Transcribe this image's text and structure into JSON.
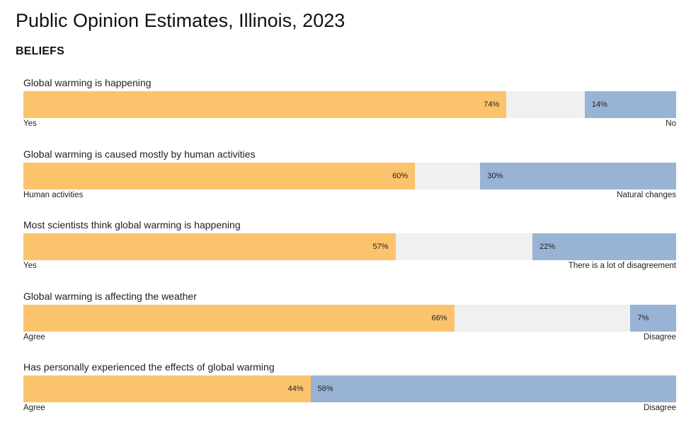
{
  "title": "Public Opinion Estimates, Illinois, 2023",
  "section": "BELIEFS",
  "colors": {
    "positive": "#fcc36d",
    "negative": "#98b3d4",
    "neutral": "#f0f0f0"
  },
  "chart_data": {
    "type": "bar",
    "orientation": "horizontal-diverging",
    "title": "Public Opinion Estimates, Illinois, 2023",
    "categories": [
      "Global warming is happening",
      "Global warming is caused mostly by human activities",
      "Most scientists think global warming is happening",
      "Global warming is affecting the weather",
      "Has personally experienced the effects of global warming"
    ],
    "rows": [
      {
        "question": "Global warming is happening",
        "left_value": 74,
        "right_value": 14,
        "left_text": "74%",
        "right_text": "14%",
        "left_label": "Yes",
        "right_label": "No"
      },
      {
        "question": "Global warming is caused mostly by human activities",
        "left_value": 60,
        "right_value": 30,
        "left_text": "60%",
        "right_text": "30%",
        "left_label": "Human activities",
        "right_label": "Natural changes"
      },
      {
        "question": "Most scientists think global warming is happening",
        "left_value": 57,
        "right_value": 22,
        "left_text": "57%",
        "right_text": "22%",
        "left_label": "Yes",
        "right_label": "There is a lot of disagreement"
      },
      {
        "question": "Global warming is affecting the weather",
        "left_value": 66,
        "right_value": 7,
        "left_text": "66%",
        "right_text": "7%",
        "left_label": "Agree",
        "right_label": "Disagree"
      },
      {
        "question": "Has personally experienced the effects of global warming",
        "left_value": 44,
        "right_value": 56,
        "left_text": "44%",
        "right_text": "56%",
        "left_label": "Agree",
        "right_label": "Disagree"
      }
    ],
    "xlim": [
      0,
      100
    ],
    "grid": false
  }
}
